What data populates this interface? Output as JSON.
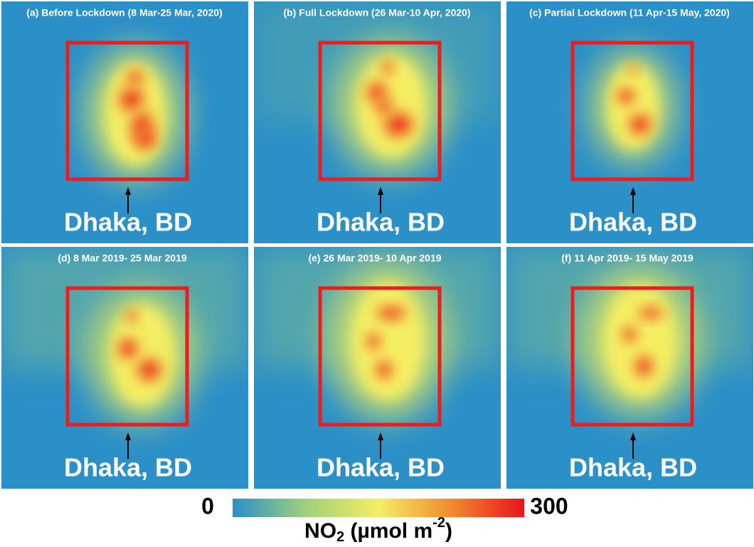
{
  "panels": [
    {
      "title": "(a) Before Lockdown (8 Mar-25 Mar,  2020)",
      "place": "Dhaka, BD"
    },
    {
      "title": "(b) Full Lockdown (26 Mar-10 Apr, 2020)",
      "place": "Dhaka, BD"
    },
    {
      "title": "(c) Partial Lockdown (11 Apr-15 May, 2020)",
      "place": "Dhaka, BD"
    },
    {
      "title": "(d) 8 Mar 2019- 25 Mar 2019",
      "place": "Dhaka, BD"
    },
    {
      "title": "(e) 26 Mar 2019- 10 Apr 2019",
      "place": "Dhaka, BD"
    },
    {
      "title": "(f) 11 Apr 2019- 15 May 2019",
      "place": "Dhaka, BD"
    }
  ],
  "colorbar": {
    "min": 0,
    "max": 300,
    "colors": [
      "#2b8fc8",
      "#9fd07a",
      "#f4ee63",
      "#f28a2e",
      "#e8141c"
    ],
    "label": {
      "base": "NO",
      "sub": "2",
      "unit": " (µmol m",
      "sup": "-2",
      "close": ")"
    }
  }
}
